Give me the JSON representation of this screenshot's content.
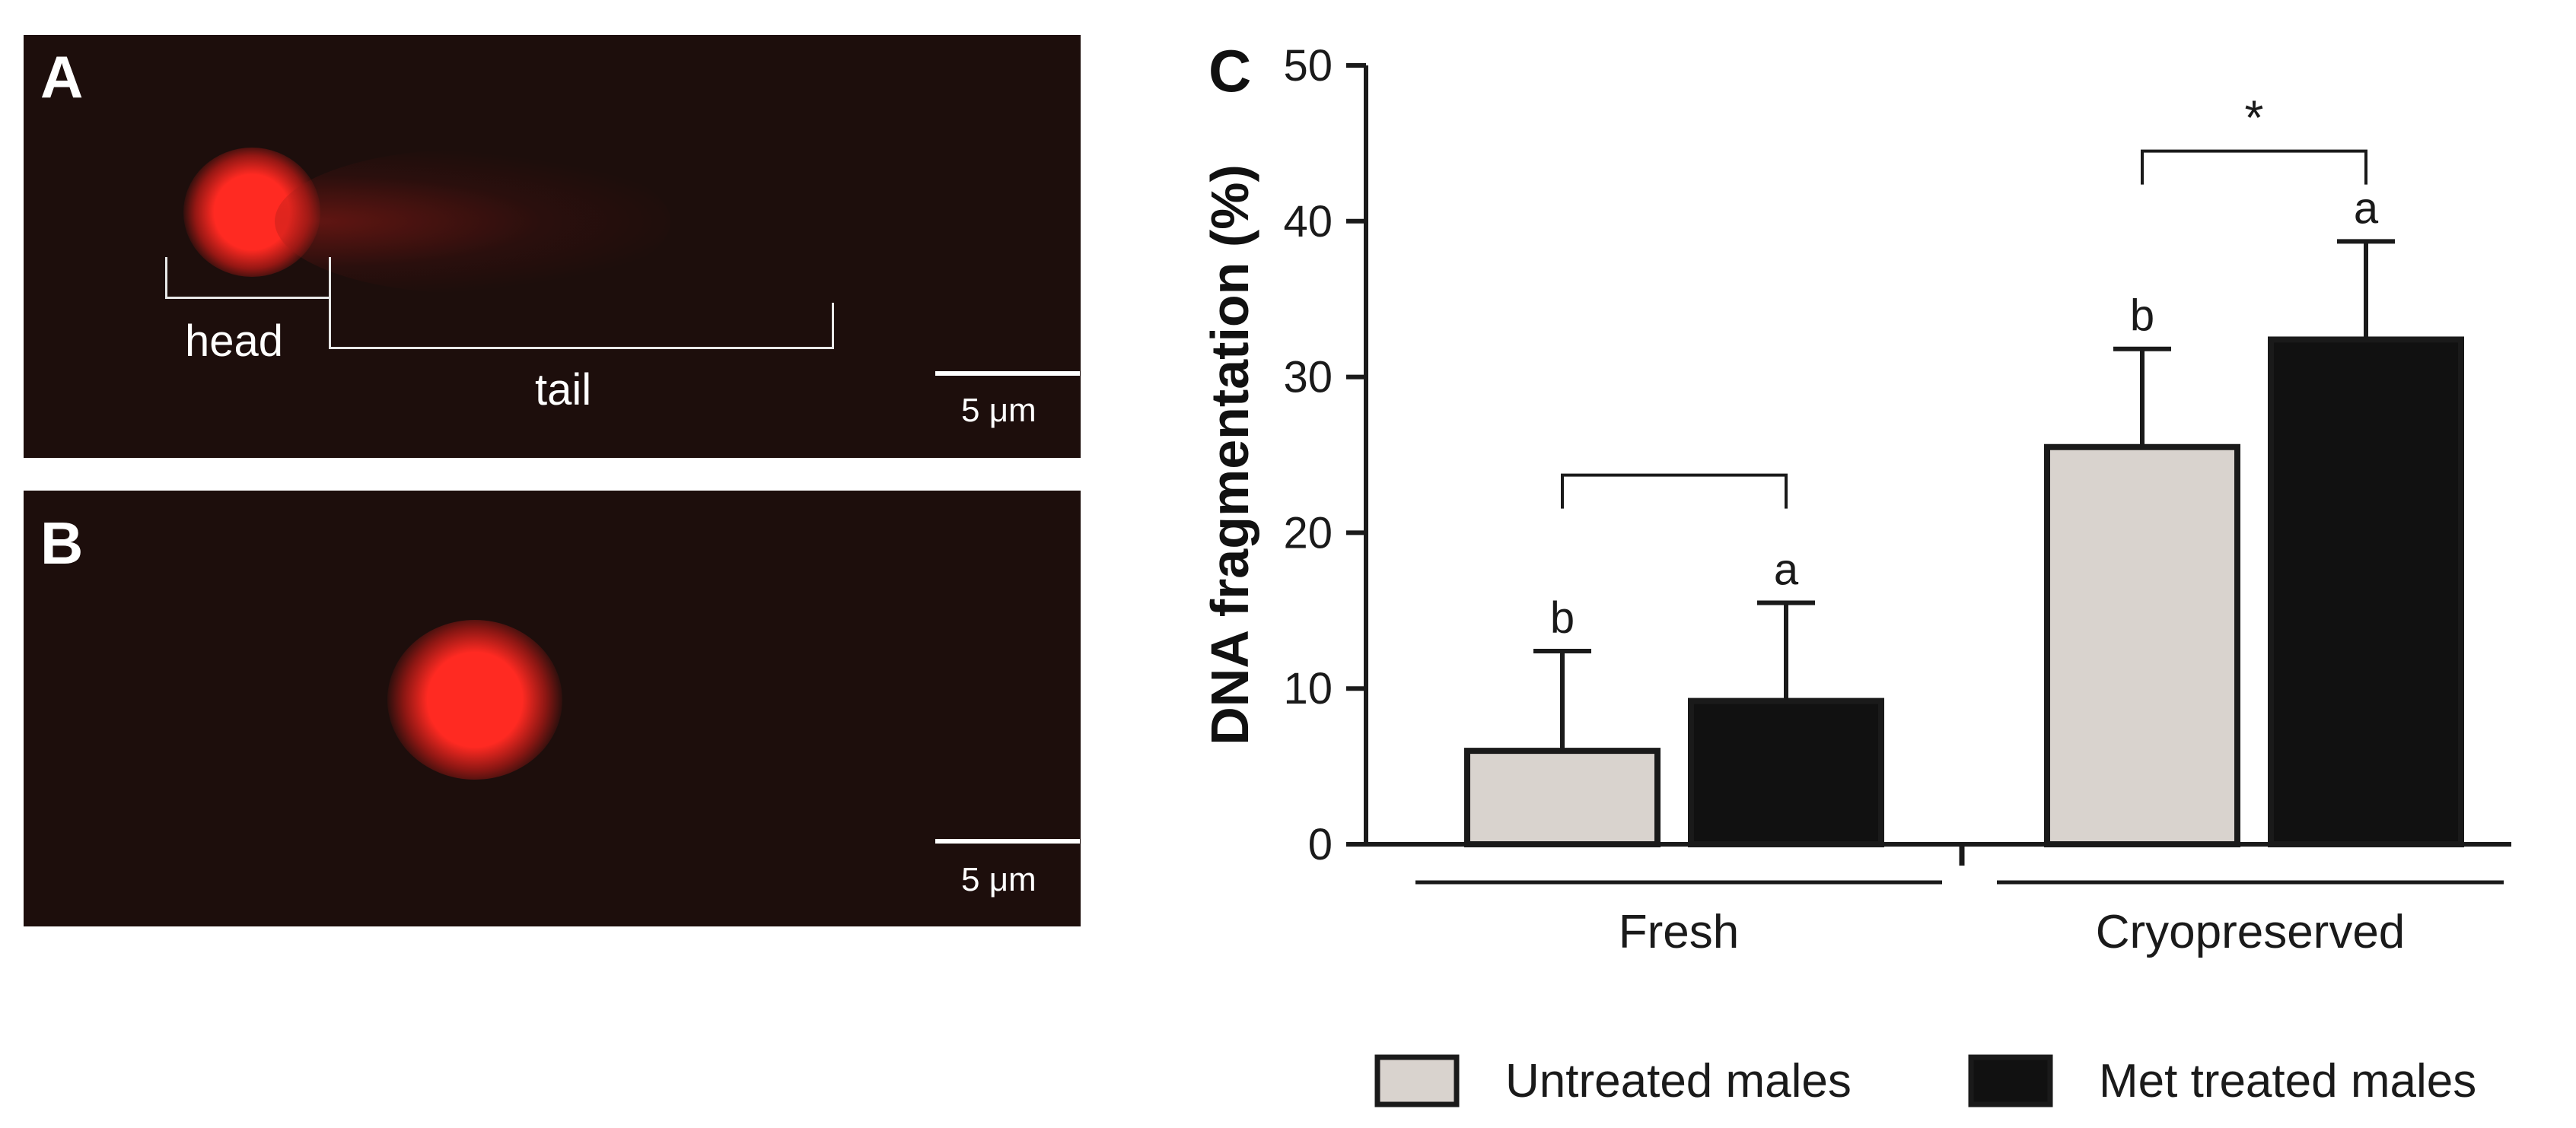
{
  "panels": {
    "a": {
      "letter": "A",
      "head_label": "head",
      "tail_label": "tail",
      "scale_label": "5 μm"
    },
    "b": {
      "letter": "B",
      "scale_label": "5 μm"
    },
    "c": {
      "letter": "C"
    }
  },
  "colors": {
    "background": "#1d0e0c",
    "spot": "#ff2a22",
    "untreated": "#d9d3ce",
    "treated": "#111111"
  },
  "chart_data": {
    "type": "bar",
    "ylabel": "DNA fragmentation (%)",
    "ylim": [
      0,
      50
    ],
    "yticks": [
      0,
      10,
      20,
      30,
      40,
      50
    ],
    "categories": [
      "Fresh",
      "Cryopreserved"
    ],
    "series": [
      {
        "name": "Untreated males",
        "color": "#d9d3ce",
        "values": [
          6.0,
          25.5
        ],
        "errors": [
          6.4,
          6.3
        ],
        "letters": [
          "b",
          "b"
        ]
      },
      {
        "name": "Met treated males",
        "color": "#111111",
        "values": [
          9.2,
          32.4
        ],
        "errors": [
          6.3,
          6.3
        ],
        "letters": [
          "a",
          "a"
        ]
      }
    ],
    "significance": {
      "Cryopreserved": "*",
      "Fresh": ""
    },
    "legend_position": "bottom-right",
    "grid": false
  }
}
